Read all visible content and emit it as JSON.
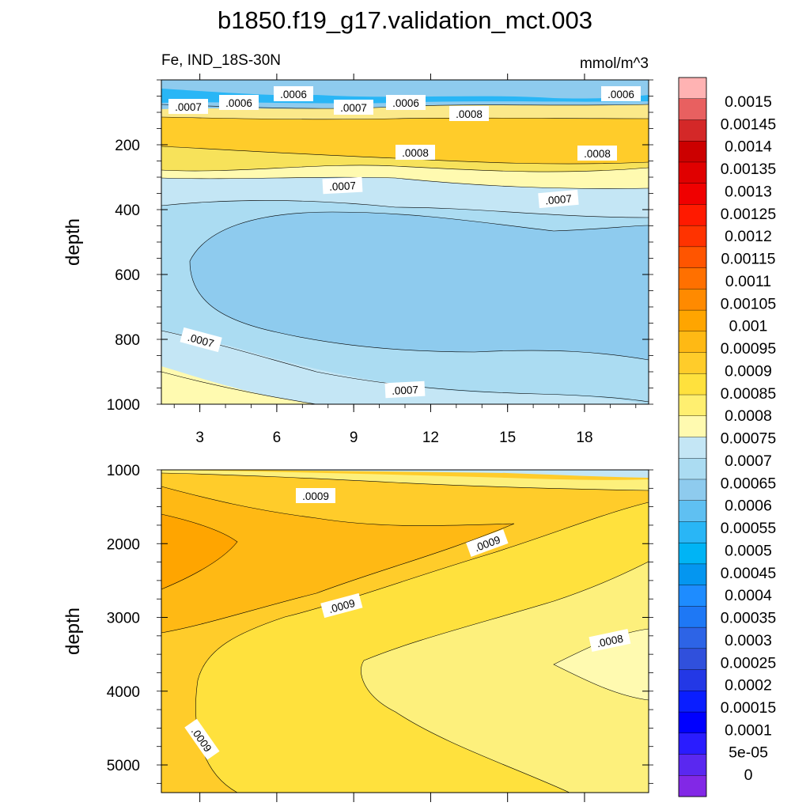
{
  "title": "b1850.f19_g17.validation_mct.003",
  "chart_data": [
    {
      "type": "contour",
      "panel": "upper",
      "left_label": "Fe, IND_18S-30N",
      "right_label": "mmol/m^3",
      "ylabel": "depth",
      "xlabel": "",
      "x_ticks": [
        "3",
        "6",
        "9",
        "12",
        "15",
        "18"
      ],
      "x_range": [
        1.5,
        20.5
      ],
      "y_ticks": [
        "200",
        "400",
        "600",
        "800",
        "1000"
      ],
      "y_range": [
        0,
        1000
      ],
      "y_reversed": true,
      "contour_labels": [
        ".0006",
        ".0007",
        ".0006",
        ".0007",
        ".0006",
        ".0008",
        ".0006",
        ".0008",
        ".0008",
        ".0007",
        ".0007",
        ".0007",
        ".0007"
      ]
    },
    {
      "type": "contour",
      "panel": "lower",
      "ylabel": "depth",
      "xlabel": "",
      "y_ticks": [
        "1000",
        "2000",
        "3000",
        "4000",
        "5000"
      ],
      "y_range": [
        1000,
        5375
      ],
      "y_reversed": true,
      "contour_labels": [
        ".0009",
        ".0009",
        ".0009",
        ".0008",
        ".0009"
      ]
    }
  ],
  "colorbar": {
    "labels": [
      "0.0015",
      "0.00145",
      "0.0014",
      "0.00135",
      "0.0013",
      "0.00125",
      "0.0012",
      "0.00115",
      "0.0011",
      "0.00105",
      "0.001",
      "0.00095",
      "0.0009",
      "0.00085",
      "0.0008",
      "0.00075",
      "0.0007",
      "0.00065",
      "0.0006",
      "0.00055",
      "0.0005",
      "0.00045",
      "0.0004",
      "0.00035",
      "0.0003",
      "0.00025",
      "0.0002",
      "0.00015",
      "0.0001",
      "5e-05",
      "0"
    ],
    "colors": [
      "#ffb3b3",
      "#e86060",
      "#d42828",
      "#cc0000",
      "#e00000",
      "#f00000",
      "#ff1a00",
      "#ff3300",
      "#ff5500",
      "#ff7000",
      "#ff8a00",
      "#ffa500",
      "#ffb914",
      "#ffcc2a",
      "#ffe13d",
      "#ffef70",
      "#fffab0",
      "#c4e6f5",
      "#abdcf2",
      "#8ecbee",
      "#5fc0f2",
      "#29b6f6",
      "#00b4f5",
      "#0496f0",
      "#1e8cff",
      "#1e78f5",
      "#2d64e6",
      "#3050dc",
      "#2338e6",
      "#0a1eff",
      "#0000ff",
      "#2a1cff",
      "#5a28f0",
      "#8228e6"
    ]
  }
}
